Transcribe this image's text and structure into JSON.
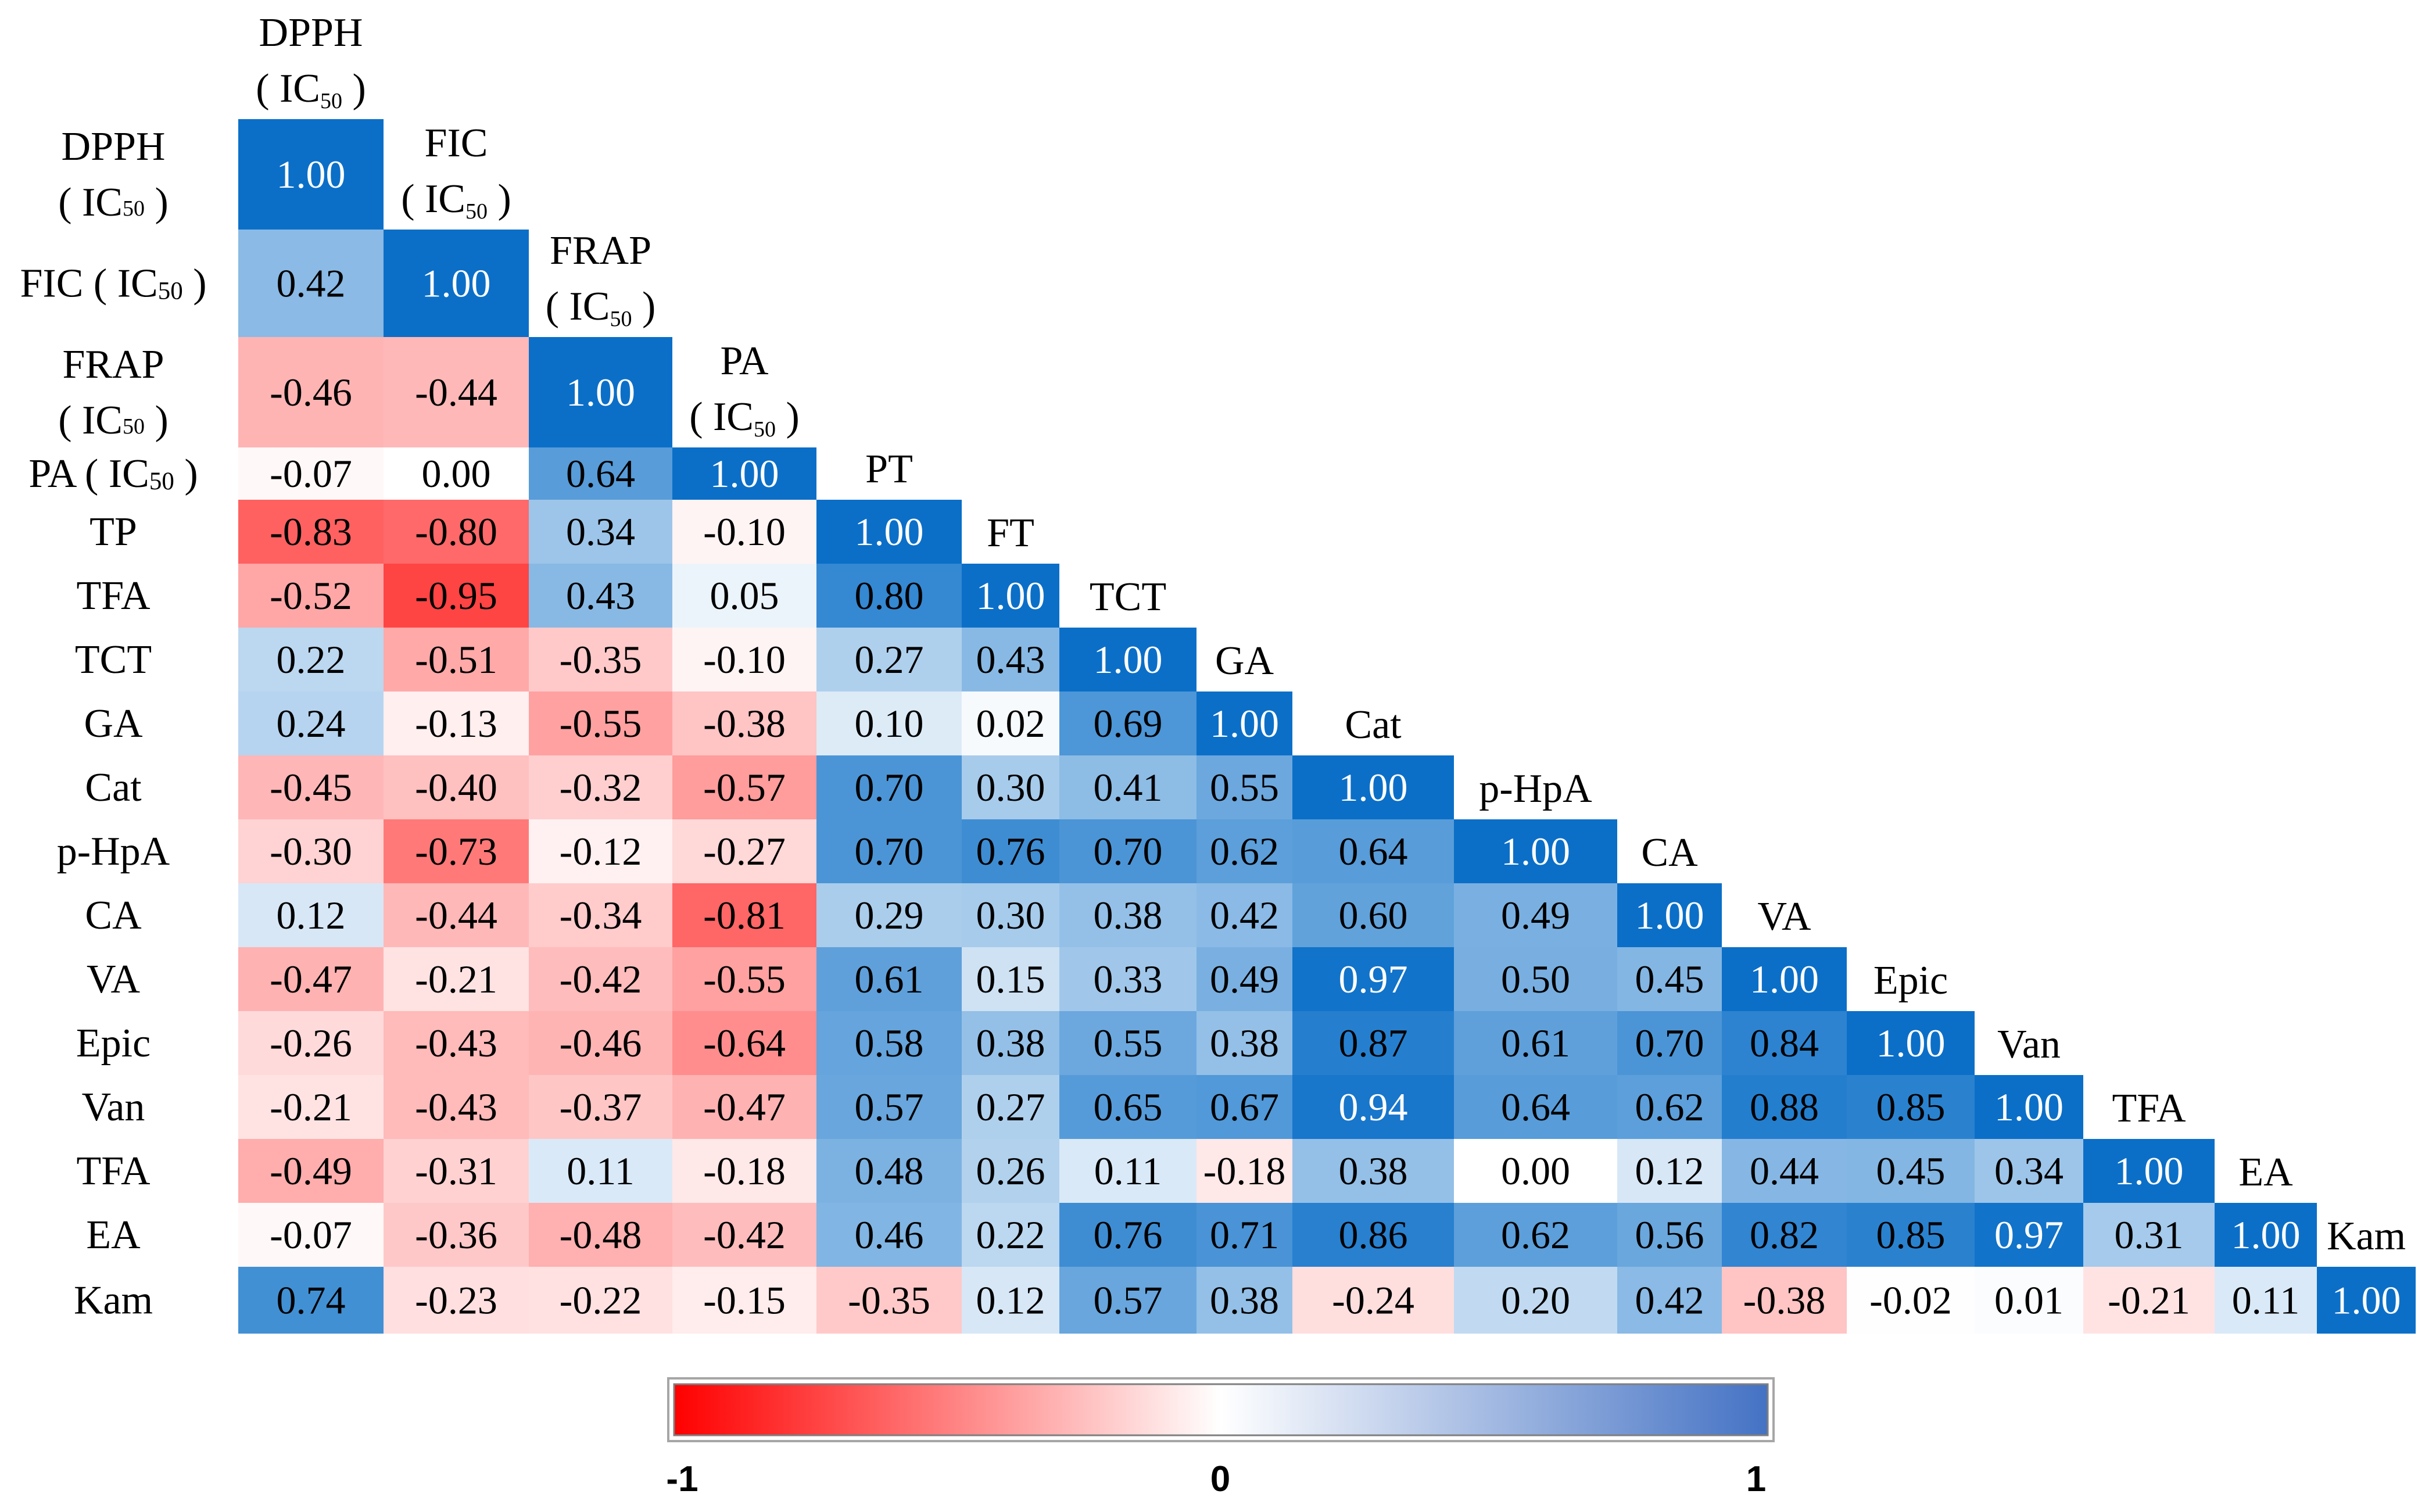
{
  "chart_data": {
    "type": "heatmap",
    "subtype": "lower-triangular correlation matrix",
    "variables": [
      {
        "name": "DPPH",
        "sub": "IC50",
        "row_label": "DPPH\n( IC50 )",
        "col_label": "DPPH\n( IC50 )"
      },
      {
        "name": "FIC",
        "sub": "IC50",
        "row_label": "FIC ( IC50 )",
        "col_label": "FIC\n( IC50 )"
      },
      {
        "name": "FRAP",
        "sub": "IC50",
        "row_label": "FRAP\n( IC50 )",
        "col_label": "FRAP\n( IC50 )"
      },
      {
        "name": "PA",
        "sub": "IC50",
        "row_label": "PA ( IC50 )",
        "col_label": "PA\n( IC50 )"
      },
      {
        "name": "TP",
        "sub": "",
        "row_label": "TP",
        "col_label": "PT"
      },
      {
        "name": "TFA",
        "sub": "",
        "row_label": "TFA",
        "col_label": "FT"
      },
      {
        "name": "TCT",
        "sub": "",
        "row_label": "TCT",
        "col_label": "TCT"
      },
      {
        "name": "GA",
        "sub": "",
        "row_label": "GA",
        "col_label": "GA"
      },
      {
        "name": "Cat",
        "sub": "",
        "row_label": "Cat",
        "col_label": "Cat"
      },
      {
        "name": "p-HpA",
        "sub": "",
        "row_label": "p-HpA",
        "col_label": "p-HpA"
      },
      {
        "name": "CA",
        "sub": "",
        "row_label": "CA",
        "col_label": "CA"
      },
      {
        "name": "VA",
        "sub": "",
        "row_label": "VA",
        "col_label": "VA"
      },
      {
        "name": "Epic",
        "sub": "",
        "row_label": "Epic",
        "col_label": "Epic"
      },
      {
        "name": "Van",
        "sub": "",
        "row_label": "Van",
        "col_label": "Van"
      },
      {
        "name": "TFA",
        "sub": "",
        "row_label": "TFA",
        "col_label": "TFA"
      },
      {
        "name": "EA",
        "sub": "",
        "row_label": "EA",
        "col_label": "EA"
      },
      {
        "name": "Kam",
        "sub": "",
        "row_label": "Kam",
        "col_label": "Kam"
      }
    ],
    "row_label_parts": [
      [
        [
          "DPPH"
        ],
        [
          "( IC",
          "50",
          " )"
        ]
      ],
      [
        [
          "FIC ( IC",
          "50",
          " )"
        ]
      ],
      [
        [
          "FRAP"
        ],
        [
          "( IC",
          "50",
          " )"
        ]
      ],
      [
        [
          "PA ( IC",
          "50",
          " )"
        ]
      ],
      [
        [
          "TP"
        ]
      ],
      [
        [
          "TFA"
        ]
      ],
      [
        [
          "TCT"
        ]
      ],
      [
        [
          "GA"
        ]
      ],
      [
        [
          "Cat"
        ]
      ],
      [
        [
          "p-HpA"
        ]
      ],
      [
        [
          "CA"
        ]
      ],
      [
        [
          "VA"
        ]
      ],
      [
        [
          "Epic"
        ]
      ],
      [
        [
          "Van"
        ]
      ],
      [
        [
          "TFA"
        ]
      ],
      [
        [
          "EA"
        ]
      ],
      [
        [
          "Kam"
        ]
      ]
    ],
    "col_label_parts": [
      [
        [
          "DPPH"
        ],
        [
          "( IC",
          "50",
          " )"
        ]
      ],
      [
        [
          "FIC"
        ],
        [
          "( IC",
          "50",
          " )"
        ]
      ],
      [
        [
          "FRAP"
        ],
        [
          "( IC",
          "50",
          " )"
        ]
      ],
      [
        [
          "PA"
        ],
        [
          "( IC",
          "50",
          " )"
        ]
      ],
      [
        [
          "PT"
        ]
      ],
      [
        [
          "FT"
        ]
      ],
      [
        [
          "TCT"
        ]
      ],
      [
        [
          "GA"
        ]
      ],
      [
        [
          "Cat"
        ]
      ],
      [
        [
          "p-HpA"
        ]
      ],
      [
        [
          "CA"
        ]
      ],
      [
        [
          "VA"
        ]
      ],
      [
        [
          "Epic"
        ]
      ],
      [
        [
          "Van"
        ]
      ],
      [
        [
          "TFA"
        ]
      ],
      [
        [
          "EA"
        ]
      ],
      [
        [
          "Kam"
        ]
      ]
    ],
    "matrix": [
      [
        "1.00"
      ],
      [
        "0.42",
        "1.00"
      ],
      [
        "-0.46",
        "-0.44",
        "1.00"
      ],
      [
        "-0.07",
        "0.00",
        "0.64",
        "1.00"
      ],
      [
        "-0.83",
        "-0.80",
        "0.34",
        "-0.10",
        "1.00"
      ],
      [
        "-0.52",
        "-0.95",
        "0.43",
        "0.05",
        "0.80",
        "1.00"
      ],
      [
        "0.22",
        "-0.51",
        "-0.35",
        "-0.10",
        "0.27",
        "0.43",
        "1.00"
      ],
      [
        "0.24",
        "-0.13",
        "-0.55",
        "-0.38",
        "0.10",
        "0.02",
        "0.69",
        "1.00"
      ],
      [
        "-0.45",
        "-0.40",
        "-0.32",
        "-0.57",
        "0.70",
        "0.30",
        "0.41",
        "0.55",
        "1.00"
      ],
      [
        "-0.30",
        "-0.73",
        "-0.12",
        "-0.27",
        "0.70",
        "0.76",
        "0.70",
        "0.62",
        "0.64",
        "1.00"
      ],
      [
        "0.12",
        "-0.44",
        "-0.34",
        "-0.81",
        "0.29",
        "0.30",
        "0.38",
        "0.42",
        "0.60",
        "0.49",
        "1.00"
      ],
      [
        "-0.47",
        "-0.21",
        "-0.42",
        "-0.55",
        "0.61",
        "0.15",
        "0.33",
        "0.49",
        "0.97",
        "0.50",
        "0.45",
        "1.00"
      ],
      [
        "-0.26",
        "-0.43",
        "-0.46",
        "-0.64",
        "0.58",
        "0.38",
        "0.55",
        "0.38",
        "0.87",
        "0.61",
        "0.70",
        "0.84",
        "1.00"
      ],
      [
        "-0.21",
        "-0.43",
        "-0.37",
        "-0.47",
        "0.57",
        "0.27",
        "0.65",
        "0.67",
        "0.94",
        "0.64",
        "0.62",
        "0.88",
        "0.85",
        "1.00"
      ],
      [
        "-0.49",
        "-0.31",
        "0.11",
        "-0.18",
        "0.48",
        "0.26",
        "0.11",
        "-0.18",
        "0.38",
        "0.00",
        "0.12",
        "0.44",
        "0.45",
        "0.34",
        "1.00"
      ],
      [
        "-0.07",
        "-0.36",
        "-0.48",
        "-0.42",
        "0.46",
        "0.22",
        "0.76",
        "0.71",
        "0.86",
        "0.62",
        "0.56",
        "0.82",
        "0.85",
        "0.97",
        "0.31",
        "1.00"
      ],
      [
        "0.74",
        "-0.23",
        "-0.22",
        "-0.15",
        "-0.35",
        "0.12",
        "0.57",
        "0.38",
        "-0.24",
        "0.20",
        "0.42",
        "-0.38",
        "-0.02",
        "0.01",
        "-0.21",
        "0.11",
        "1.00"
      ]
    ],
    "color_scale": {
      "min": -1,
      "max": 1,
      "min_color": "#ff0000",
      "mid_color": "#ffffff",
      "max_color": "#0b6fc8",
      "legend_bar_max_color": "#4472c4"
    },
    "legend": {
      "placement": "bottom-center",
      "tick_labels": [
        "-1",
        "0",
        "1"
      ]
    }
  }
}
